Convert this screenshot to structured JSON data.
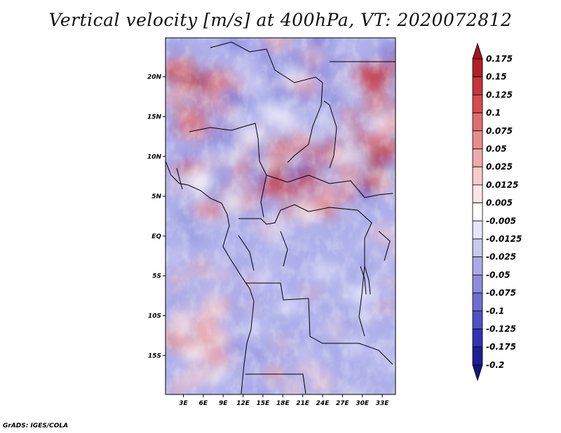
{
  "title": "Vertical velocity [m/s] at 400hPa, VT: 2020072812",
  "footer": "GrADS: IGES/COLA",
  "chart_data": {
    "type": "heatmap",
    "title": "Vertical velocity [m/s] at 400hPa, VT: 2020072812",
    "variable": "Vertical velocity",
    "units": "m/s",
    "level": "400hPa",
    "valid_time": "2020072812",
    "x_ticks": [
      {
        "value": 3,
        "label": "3E"
      },
      {
        "value": 6,
        "label": "6E"
      },
      {
        "value": 9,
        "label": "9E"
      },
      {
        "value": 12,
        "label": "12E"
      },
      {
        "value": 15,
        "label": "15E"
      },
      {
        "value": 18,
        "label": "18E"
      },
      {
        "value": 21,
        "label": "21E"
      },
      {
        "value": 24,
        "label": "24E"
      },
      {
        "value": 27,
        "label": "27E"
      },
      {
        "value": 30,
        "label": "30E"
      },
      {
        "value": 33,
        "label": "33E"
      }
    ],
    "y_ticks": [
      {
        "value": 20,
        "label": "20N"
      },
      {
        "value": 15,
        "label": "15N"
      },
      {
        "value": 10,
        "label": "10N"
      },
      {
        "value": 5,
        "label": "5N"
      },
      {
        "value": 0,
        "label": "EQ"
      },
      {
        "value": -5,
        "label": "5S"
      },
      {
        "value": -10,
        "label": "10S"
      },
      {
        "value": -15,
        "label": "15S"
      }
    ],
    "xlim": [
      0.3,
      35
    ],
    "ylim": [
      -19.9,
      24.9
    ],
    "colorbar": {
      "levels": [
        "0.175",
        "0.15",
        "0.125",
        "0.1",
        "0.075",
        "0.05",
        "0.025",
        "0.0125",
        "0.005",
        "-0.005",
        "-0.0125",
        "-0.025",
        "-0.05",
        "-0.075",
        "-0.1",
        "-0.125",
        "-0.175",
        "-0.2"
      ],
      "colors": [
        "#a0141e",
        "#b41e28",
        "#c8323c",
        "#d64b50",
        "#e06e6e",
        "#e88c8c",
        "#f0aaaa",
        "#f8cccc",
        "#fce6e6",
        "#ffffff",
        "#e6e6fa",
        "#c8c8f0",
        "#aaaae6",
        "#8c8cdc",
        "#6e6ed2",
        "#5050c8",
        "#3232b4",
        "#1e1e96",
        "#14147a"
      ]
    }
  }
}
